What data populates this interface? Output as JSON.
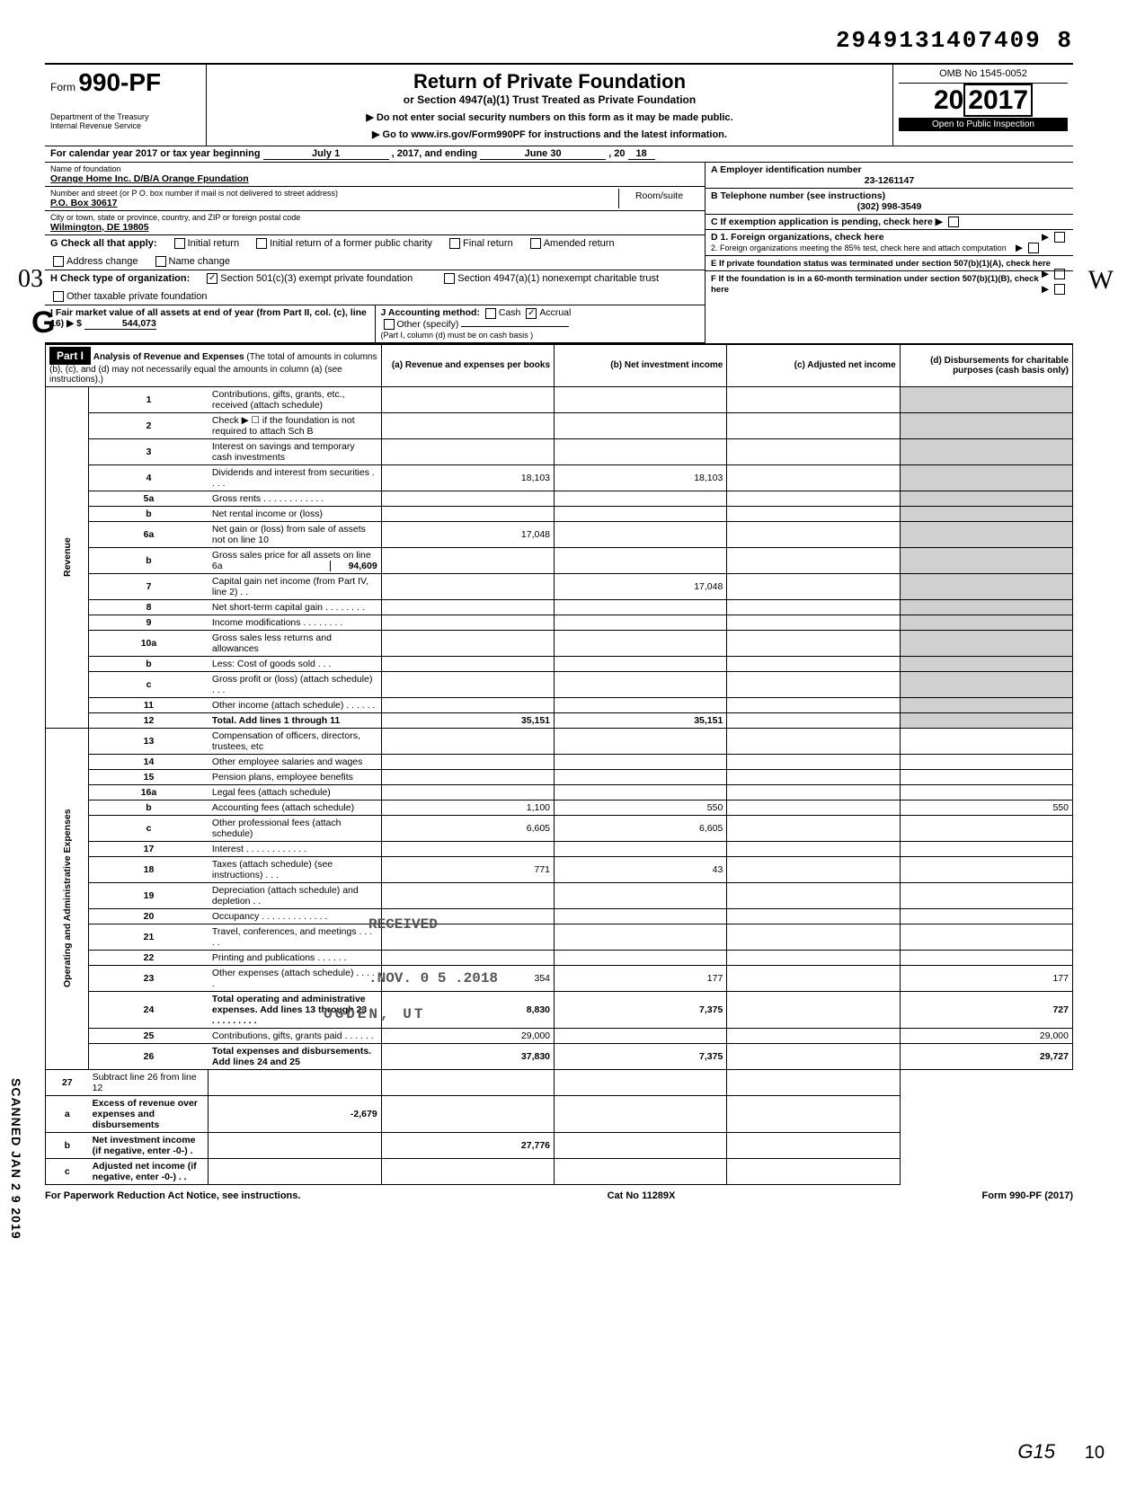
{
  "header": {
    "doc_number": "2949131407409 8",
    "form_label": "Form",
    "form_number": "990-PF",
    "dept1": "Department of the Treasury",
    "dept2": "Internal Revenue Service",
    "title": "Return of Private Foundation",
    "subtitle": "or Section 4947(a)(1) Trust Treated as Private Foundation",
    "note1": "▶ Do not enter social security numbers on this form as it may be made public.",
    "note2": "▶ Go to www.irs.gov/Form990PF for instructions and the latest information.",
    "omb": "OMB No 1545-0052",
    "year": "2017",
    "inspect": "Open to Public Inspection"
  },
  "calendar_row": {
    "text_a": "For calendar year 2017 or tax year beginning",
    "begin": "July 1",
    "text_b": ", 2017, and ending",
    "end_m": "June 30",
    "text_c": ", 20",
    "end_y": "18"
  },
  "info": {
    "name_label": "Name of foundation",
    "name": "Orange Home Inc. D/B/A Orange Fpundation",
    "addr_label": "Number and street (or P O. box number if mail is not delivered to street address)",
    "addr": "P.O. Box 30617",
    "room_label": "Room/suite",
    "city_label": "City or town, state or province, country, and ZIP or foreign postal code",
    "city": "Wilmington, DE 19805",
    "A_label": "A  Employer identification number",
    "A_val": "23-1261147",
    "B_label": "B  Telephone number (see instructions)",
    "B_val": "(302) 998-3549",
    "C_label": "C  If exemption application is pending, check here ▶",
    "D1_label": "D  1. Foreign organizations, check here",
    "D2_label": "2. Foreign organizations meeting the 85% test, check here and attach computation",
    "E_label": "E  If private foundation status was terminated under section 507(b)(1)(A), check here",
    "F_label": "F  If the foundation is in a 60-month termination under section 507(b)(1)(B), check here"
  },
  "G": {
    "label": "G   Check all that apply:",
    "opts": [
      "Initial return",
      "Initial return of a former public charity",
      "Final return",
      "Amended return",
      "Address change",
      "Name change"
    ]
  },
  "H": {
    "label": "H   Check type of organization:",
    "opt1": "Section 501(c)(3) exempt private foundation",
    "opt2": "Section 4947(a)(1) nonexempt charitable trust",
    "opt3": "Other taxable private foundation"
  },
  "I": {
    "label": "I    Fair market value of all assets at end of year  (from Part II, col. (c), line 16) ▶ $",
    "value": "544,073"
  },
  "J": {
    "label": "J   Accounting method:",
    "cash": "Cash",
    "accrual": "Accrual",
    "other": "Other (specify)",
    "note": "(Part I, column (d) must be on cash basis )"
  },
  "part1": {
    "label": "Part I",
    "title": "Analysis of Revenue and Expenses",
    "title_note": "(The total of amounts in columns (b), (c), and (d) may not necessarily equal the amounts in column (a) (see instructions).)",
    "col_a": "(a) Revenue and expenses per books",
    "col_b": "(b) Net investment income",
    "col_c": "(c) Adjusted net income",
    "col_d": "(d) Disbursements for charitable purposes (cash basis only)"
  },
  "rows": [
    {
      "n": "1",
      "d": "Contributions, gifts, grants, etc., received (attach schedule)"
    },
    {
      "n": "2",
      "d": "Check ▶ ☐ if the foundation is not required to attach Sch  B"
    },
    {
      "n": "3",
      "d": "Interest on savings and temporary cash investments"
    },
    {
      "n": "4",
      "d": "Dividends and interest from securities  .  .  .  .",
      "a": "18,103",
      "b": "18,103"
    },
    {
      "n": "5a",
      "d": "Gross rents .  .  .  .  .  .  .  .  .  .  .  ."
    },
    {
      "n": "b",
      "d": "Net rental income or (loss)"
    },
    {
      "n": "6a",
      "d": "Net gain or (loss) from sale of assets not on line 10",
      "a": "17,048"
    },
    {
      "n": "b",
      "d": "Gross sales price for all assets on line 6a",
      "inline": "94,609"
    },
    {
      "n": "7",
      "d": "Capital gain net income (from Part IV, line 2)  .  .",
      "b": "17,048"
    },
    {
      "n": "8",
      "d": "Net short-term capital gain .  .  .  .  .  .  .  ."
    },
    {
      "n": "9",
      "d": "Income modifications       .  .  .  .  .  .  .  ."
    },
    {
      "n": "10a",
      "d": "Gross sales less returns and allowances"
    },
    {
      "n": "b",
      "d": "Less: Cost of goods sold    .  .  ."
    },
    {
      "n": "c",
      "d": "Gross profit or (loss) (attach schedule)  .  .  ."
    },
    {
      "n": "11",
      "d": "Other income (attach schedule)   .  .  .  .  .  ."
    },
    {
      "n": "12",
      "d": "Total. Add lines 1 through 11",
      "a": "35,151",
      "b": "35,151",
      "bold": true
    }
  ],
  "exp_rows": [
    {
      "n": "13",
      "d": "Compensation of officers, directors, trustees, etc"
    },
    {
      "n": "14",
      "d": "Other employee salaries and wages"
    },
    {
      "n": "15",
      "d": "Pension plans, employee benefits"
    },
    {
      "n": "16a",
      "d": "Legal fees (attach schedule)"
    },
    {
      "n": "b",
      "d": "Accounting fees (attach schedule)",
      "a": "1,100",
      "b": "550",
      "dd": "550"
    },
    {
      "n": "c",
      "d": "Other professional fees (attach schedule)",
      "a": "6,605",
      "b": "6,605"
    },
    {
      "n": "17",
      "d": "Interest    .  .  .  .  .  .  .  .  .  .  .  ."
    },
    {
      "n": "18",
      "d": "Taxes (attach schedule) (see instructions)  .  .  .",
      "a": "771",
      "b": "43"
    },
    {
      "n": "19",
      "d": "Depreciation (attach schedule) and depletion .  ."
    },
    {
      "n": "20",
      "d": "Occupancy .  .  .  .  .  .  .  .  .  .  .  .  ."
    },
    {
      "n": "21",
      "d": "Travel, conferences, and meetings  .  .  .  .  ."
    },
    {
      "n": "22",
      "d": "Printing and publications          .  .  .  .  .  ."
    },
    {
      "n": "23",
      "d": "Other expenses (attach schedule)   .  .  .  .  .",
      "a": "354",
      "b": "177",
      "dd": "177"
    },
    {
      "n": "24",
      "d": "Total operating and administrative expenses. Add lines 13 through 23 .  .  .  .  .  .  .  .  .  .",
      "a": "8,830",
      "b": "7,375",
      "dd": "727",
      "bold": true
    },
    {
      "n": "25",
      "d": "Contributions, gifts, grants paid   .  .  .  .  .  .",
      "a": "29,000",
      "dd": "29,000"
    },
    {
      "n": "26",
      "d": "Total expenses and disbursements. Add lines 24 and 25",
      "a": "37,830",
      "b": "7,375",
      "dd": "29,727",
      "bold": true
    }
  ],
  "net_rows": [
    {
      "n": "27",
      "d": "Subtract line 26 from line 12"
    },
    {
      "n": "a",
      "d": "Excess of revenue over expenses and disbursements",
      "a": "-2,679",
      "bold": true
    },
    {
      "n": "b",
      "d": "Net investment income (if negative, enter -0-)  .",
      "b": "27,776",
      "bold": true
    },
    {
      "n": "c",
      "d": "Adjusted net income (if negative, enter -0-)  .  .",
      "bold": true
    }
  ],
  "side_rev": "Revenue",
  "side_exp": "Operating and Administrative Expenses",
  "stamps": {
    "received": "RECEIVED",
    "date": ".NOV. 0 5 .2018",
    "ogden": "OGDEN, UT",
    "irs": "IRS  RSOSC",
    "scan": "SCANNED JAN 2 9 2019"
  },
  "footer": {
    "left": "For Paperwork Reduction Act Notice, see instructions.",
    "mid": "Cat No  11289X",
    "right": "Form 990-PF (2017)"
  },
  "hand": {
    "g": "G",
    "o3": "03",
    "w": "W",
    "bottom": "G15",
    "ten": "10"
  }
}
